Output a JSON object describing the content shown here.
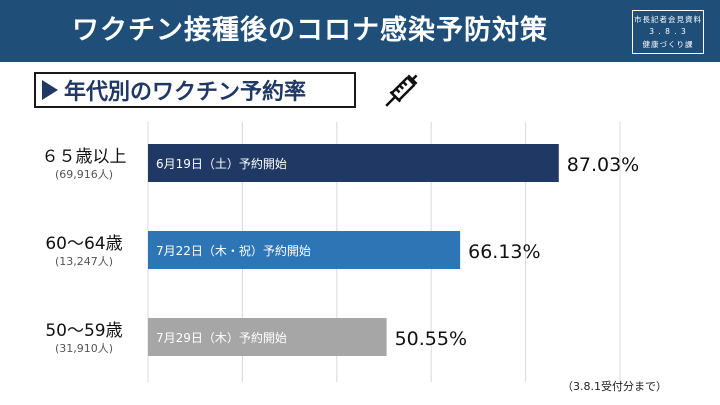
{
  "header": {
    "title": "ワクチン接種後のコロナ感染予防対策",
    "badge_line1": "市長記者会見資料",
    "badge_line2": "3 . 8 . 3",
    "badge_line3": "健康づくり課"
  },
  "subtitle": "年代別のワクチン予約率",
  "icons": {
    "syringe": "syringe-icon",
    "triangle": "play-triangle-icon"
  },
  "note": "（3.8.1受付分まで）",
  "colors": {
    "header": "#1f4e79",
    "bar1": "#1f3864",
    "bar2": "#2e75b6",
    "bar3": "#a6a6a6"
  },
  "chart_data": {
    "type": "bar",
    "orientation": "horizontal",
    "grid": true,
    "xlim": [
      0,
      100
    ],
    "categories": [
      {
        "label": "６５歳以上",
        "sub": "(69,916人)",
        "value": 87.03,
        "value_label": "87.03%",
        "bar_text": "6月19日（土）予約開始",
        "color": "#1f3864"
      },
      {
        "label": "60〜64歳",
        "sub": "(13,247人)",
        "value": 66.13,
        "value_label": "66.13%",
        "bar_text": "7月22日（木・祝）予約開始",
        "color": "#2e75b6"
      },
      {
        "label": "50〜59歳",
        "sub": "(31,910人)",
        "value": 50.55,
        "value_label": "50.55%",
        "bar_text": "7月29日（木）予約開始",
        "color": "#a6a6a6"
      }
    ]
  }
}
